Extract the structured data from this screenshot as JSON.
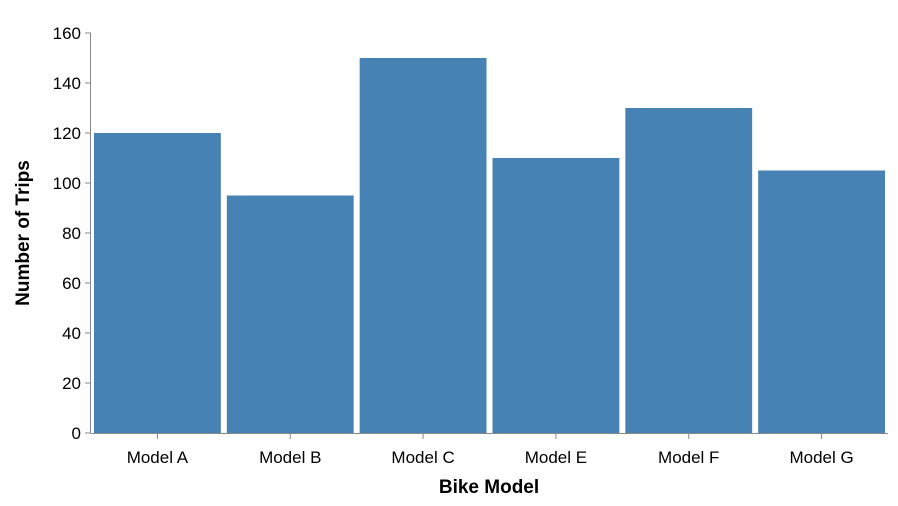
{
  "chart_data": {
    "type": "bar",
    "title": "",
    "xlabel": "Bike Model",
    "ylabel": "Number of Trips",
    "categories": [
      "Model A",
      "Model B",
      "Model C",
      "Model E",
      "Model F",
      "Model G"
    ],
    "values": [
      120,
      95,
      150,
      110,
      130,
      105
    ],
    "ylim": [
      0,
      160
    ],
    "yticks": [
      0,
      20,
      40,
      60,
      80,
      100,
      120,
      140,
      160
    ],
    "grid": false,
    "legend": "none",
    "bar_color": "#4682b4"
  }
}
